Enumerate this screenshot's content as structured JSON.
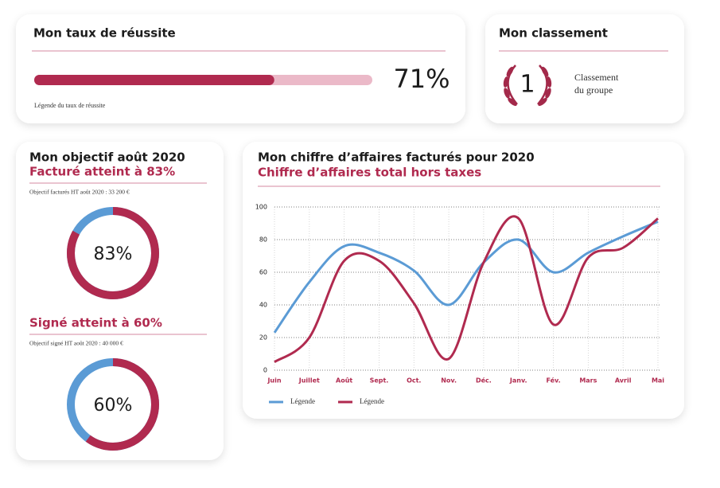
{
  "success": {
    "title": "Mon taux de réussite",
    "value": 71,
    "value_label": "71%",
    "range": [
      0,
      100
    ],
    "caption": "Légende du taux de réussite",
    "color": "#b02a4f",
    "track_color": "#ebb9c8"
  },
  "ranking": {
    "title": "Mon classement",
    "rank": 1,
    "caption_lines": [
      "Classement",
      "du groupe"
    ]
  },
  "objective": {
    "title": "Mon objectif août 2020",
    "range": [
      0,
      100
    ],
    "color": "#b02a4f",
    "rest_color": "#5b9bd5",
    "gauges": [
      {
        "heading": "Facturé atteint à 83%",
        "caption": "Objectif facturés HT août 2020 : 33 200 €",
        "value": 83,
        "value_label": "83%"
      },
      {
        "heading": "Signé atteint à 60%",
        "caption": "Objectif signé HT août 2020 : 40 000 €",
        "value": 60,
        "value_label": "60%"
      }
    ]
  },
  "chart_data": {
    "type": "line",
    "title": "Mon chiffre d’affaires facturés pour 2020",
    "subtitle": "Chiffre d’affaires total hors taxes",
    "categories": [
      "Juin",
      "Juillet",
      "Août",
      "Sept.",
      "Oct.",
      "Nov.",
      "Déc.",
      "Janv.",
      "Fév.",
      "Mars",
      "Avril",
      "Mai"
    ],
    "series": [
      {
        "name": "Légende",
        "color": "#5b9bd5",
        "values": [
          23,
          54,
          76,
          72,
          61,
          40,
          66,
          80,
          60,
          72,
          82,
          91
        ]
      },
      {
        "name": "Légende",
        "color": "#b02a4f",
        "values": [
          5,
          20,
          67,
          67,
          41,
          7,
          66,
          93,
          28,
          69,
          75,
          93
        ]
      }
    ],
    "ylim": [
      0,
      100
    ],
    "yticks": [
      0,
      20,
      40,
      60,
      80,
      100
    ],
    "grid": true
  }
}
